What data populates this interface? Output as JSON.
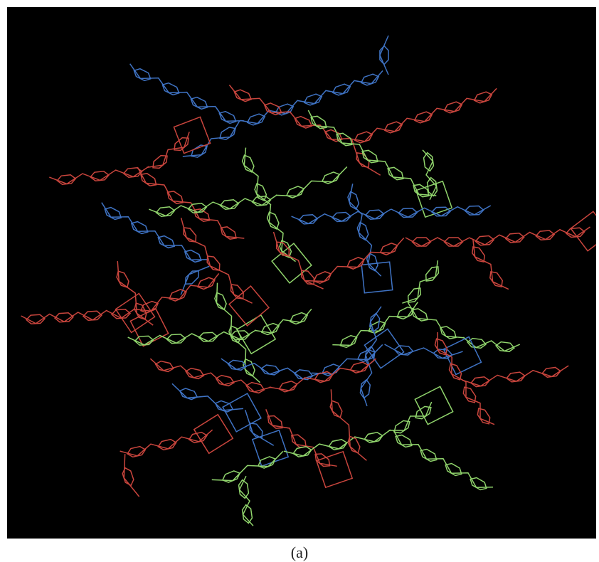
{
  "caption": "(a)"
}
